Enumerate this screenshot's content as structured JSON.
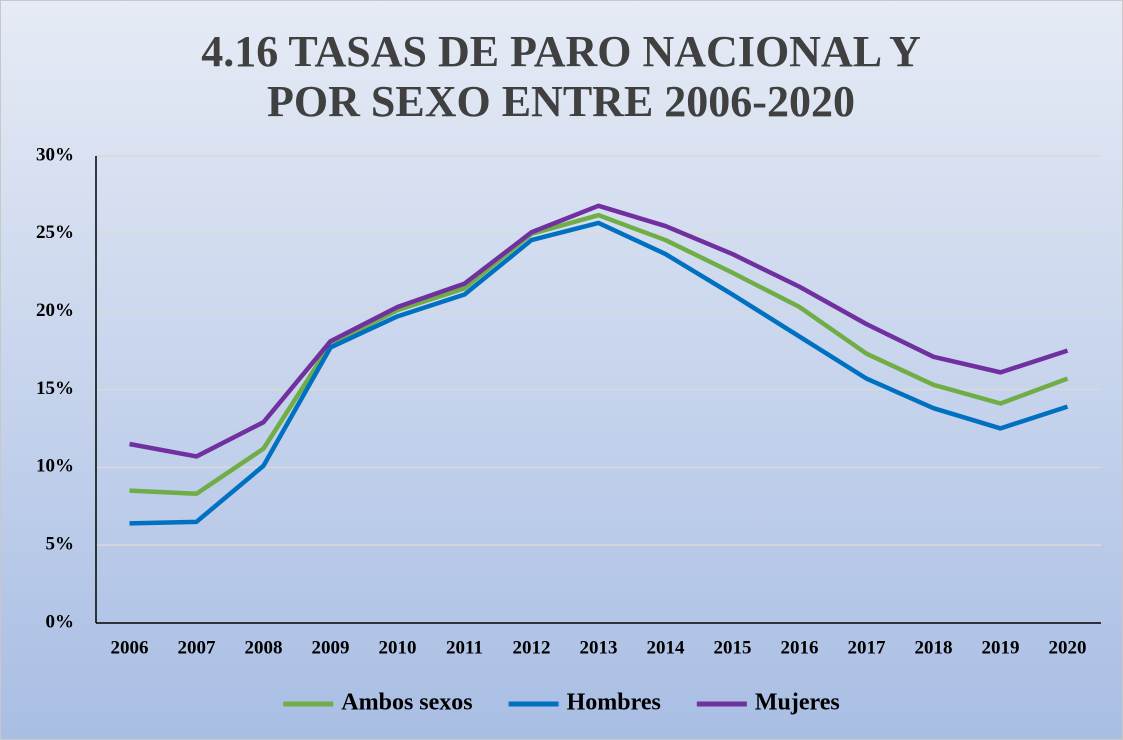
{
  "chart_data": {
    "type": "line",
    "title": "4.16 TASAS DE PARO NACIONAL Y POR SEXO ENTRE 2006-2020",
    "categories": [
      "2006",
      "2007",
      "2008",
      "2009",
      "2010",
      "2011",
      "2012",
      "2013",
      "2014",
      "2015",
      "2016",
      "2017",
      "2018",
      "2019",
      "2020"
    ],
    "series": [
      {
        "name": "Ambos sexos",
        "color": "#70ad47",
        "values": [
          8.5,
          8.3,
          11.2,
          17.9,
          20.1,
          21.5,
          25.0,
          26.2,
          24.6,
          22.5,
          20.3,
          17.3,
          15.3,
          14.1,
          15.7
        ]
      },
      {
        "name": "Hombres",
        "color": "#0070c0",
        "values": [
          6.4,
          6.5,
          10.1,
          17.7,
          19.7,
          21.1,
          24.6,
          25.7,
          23.7,
          21.1,
          18.4,
          15.7,
          13.8,
          12.5,
          13.9
        ]
      },
      {
        "name": "Mujeres",
        "color": "#7030a0",
        "values": [
          11.5,
          10.7,
          12.9,
          18.1,
          20.3,
          21.8,
          25.1,
          26.8,
          25.5,
          23.7,
          21.6,
          19.2,
          17.1,
          16.1,
          17.5
        ]
      }
    ],
    "ylim": [
      0,
      30
    ],
    "yticks": [
      {
        "value": 0,
        "label": "0%"
      },
      {
        "value": 5,
        "label": "5%"
      },
      {
        "value": 10,
        "label": "10%"
      },
      {
        "value": 15,
        "label": "15%"
      },
      {
        "value": 20,
        "label": "20%"
      },
      {
        "value": 25,
        "label": "25%"
      },
      {
        "value": 30,
        "label": "30%"
      }
    ],
    "grid": true,
    "legend": "bottom"
  }
}
